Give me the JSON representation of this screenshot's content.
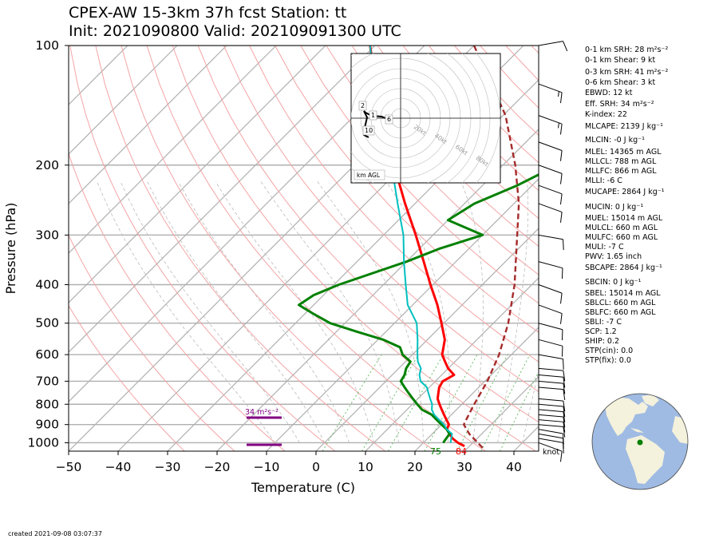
{
  "titles": {
    "line1": "CPEX-AW 15-3km  37h fcst  Station: tt",
    "line2": "Init: 2021090800  Valid: 202109091300 UTC"
  },
  "footer": "created 2021-09-08 03:07:37",
  "stats": [
    "0-1 km SRH: 28 m²s⁻²",
    "0-1 km Shear: 9 kt",
    "0-3 km SRH: 41 m²s⁻²",
    "0-6 km Shear: 3 kt",
    "EBWD: 12 kt",
    "Eff. SRH: 34 m²s⁻²",
    "K-index: 22",
    "MLCAPE: 2139 J kg⁻¹",
    "MLCIN: -0 J kg⁻¹",
    "MLEL: 14365 m AGL",
    "MLLCL: 788 m AGL",
    "MLLFC: 866 m AGL",
    "MLLI: -6 C",
    "MUCAPE: 2864 J kg⁻¹",
    "MUCIN: 0 J kg⁻¹",
    "MUEL: 15014 m AGL",
    "MULCL: 660 m AGL",
    "MULFC: 660 m AGL",
    "MULI: -7 C",
    "PWV: 1.65 inch",
    "SBCAPE: 2864 J kg⁻¹",
    "SBCIN: 0 J kg⁻¹",
    "SBEL: 15014 m AGL",
    "SBLCL: 660 m AGL",
    "SBLFC: 660 m AGL",
    "SBLI: -7 C",
    "SCP: 1.2",
    "SHIP: 0.2",
    "STP(cin): 0.0",
    "STP(fix): 0.0"
  ],
  "hodograph": {
    "ring_labels": [
      "20kt",
      "40kt",
      "60kt",
      "80kt"
    ],
    "height_labels": [
      "2",
      "1",
      "6",
      "10"
    ],
    "agl_label": "km AGL",
    "colors": {
      "trace": "#000000",
      "rings": "#bbbbbb"
    }
  },
  "surface_labels": {
    "dewpoint": "75",
    "temperature": "84"
  },
  "barb_unit_label": "knot",
  "eff_srh_label": "34 m²s⁻²",
  "colors": {
    "temperature": "#ff0000",
    "dewpoint": "#008000",
    "wetbulb": "#00bfbf",
    "parcel": "#a52a2a",
    "eff_layer": "#800080",
    "dry_adiabat": "#f4a4a4",
    "moist_adiabat": "#bbbbbb",
    "mixing_ratio": "#6abf6a",
    "globe_ocean": "#9fbbe3",
    "globe_land": "#f4f1dc",
    "station_dot": "#008000"
  },
  "chart_data": {
    "type": "line",
    "xlabel": "Temperature (C)",
    "ylabel": "Pressure (hPa)",
    "xlim": [
      -50,
      45
    ],
    "ylim": [
      1050,
      100
    ],
    "skew": true,
    "x_ticks": [
      "−50",
      "−40",
      "−30",
      "−20",
      "−10",
      "0",
      "10",
      "20",
      "30",
      "40"
    ],
    "y_ticks": [
      "100",
      "200",
      "300",
      "400",
      "500",
      "600",
      "700",
      "800",
      "900",
      "1000"
    ],
    "series": [
      {
        "name": "temperature",
        "pressure": [
          1020,
          1000,
          975,
          950,
          925,
          900,
          875,
          850,
          825,
          800,
          775,
          750,
          725,
          700,
          675,
          650,
          625,
          600,
          550,
          500,
          450,
          400,
          350,
          300,
          250,
          200,
          150,
          100
        ],
        "values": [
          29,
          27,
          25,
          23.5,
          22,
          21.5,
          20,
          18.5,
          17,
          15.5,
          14,
          13,
          12,
          11.5,
          12.5,
          10,
          8,
          6,
          3.5,
          -0.5,
          -5,
          -10.5,
          -16.5,
          -23.5,
          -32,
          -42,
          -55,
          -71
        ]
      },
      {
        "name": "dewpoint",
        "pressure": [
          1000,
          950,
          925,
          900,
          875,
          850,
          825,
          800,
          775,
          750,
          725,
          700,
          675,
          650,
          625,
          600,
          575,
          550,
          525,
          500,
          475,
          450,
          425,
          400,
          350,
          325,
          300,
          275,
          250,
          225,
          200,
          150,
          125,
          100
        ],
        "values": [
          24,
          23.5,
          22,
          20,
          18,
          16,
          13,
          11,
          9,
          7,
          5,
          3,
          2.5,
          1.5,
          1,
          -2,
          -4,
          -9,
          -16,
          -23,
          -28,
          -33,
          -32,
          -29,
          -20,
          -16,
          -10,
          -20,
          -18,
          -13,
          -9,
          -11,
          -7,
          5
        ]
      },
      {
        "name": "wetbulb",
        "pressure": [
          1000,
          950,
          925,
          900,
          875,
          850,
          825,
          800,
          775,
          750,
          725,
          700,
          675,
          650,
          625,
          600,
          550,
          500,
          450,
          400,
          350,
          300,
          250,
          200,
          150,
          100
        ],
        "values": [
          25.5,
          24,
          22,
          20.5,
          18.5,
          16.5,
          15,
          14,
          12.5,
          11,
          9.5,
          7,
          5.5,
          4.5,
          2.5,
          1,
          -2,
          -5.5,
          -11,
          -15.5,
          -20.5,
          -26,
          -33.5,
          -42.5,
          -55.5,
          -71
        ]
      },
      {
        "name": "parcel",
        "pressure": [
          1030,
          1000,
          950,
          900,
          850,
          800,
          700,
          600,
          500,
          400,
          300,
          250,
          200,
          150,
          100
        ],
        "values": [
          33,
          31,
          27.5,
          24.5,
          23.5,
          22.5,
          20.5,
          17.5,
          13,
          6.5,
          -3,
          -9,
          -17.5,
          -29.5,
          -50
        ]
      }
    ],
    "wind_barbs": [
      {
        "p": 1000,
        "speed_kt": 10,
        "dir_deg": 110
      },
      {
        "p": 975,
        "speed_kt": 10,
        "dir_deg": 100
      },
      {
        "p": 950,
        "speed_kt": 10,
        "dir_deg": 100
      },
      {
        "p": 925,
        "speed_kt": 10,
        "dir_deg": 100
      },
      {
        "p": 900,
        "speed_kt": 10,
        "dir_deg": 95
      },
      {
        "p": 875,
        "speed_kt": 10,
        "dir_deg": 95
      },
      {
        "p": 850,
        "speed_kt": 10,
        "dir_deg": 95
      },
      {
        "p": 825,
        "speed_kt": 10,
        "dir_deg": 95
      },
      {
        "p": 800,
        "speed_kt": 10,
        "dir_deg": 95
      },
      {
        "p": 775,
        "speed_kt": 10,
        "dir_deg": 95
      },
      {
        "p": 725,
        "speed_kt": 10,
        "dir_deg": 95
      },
      {
        "p": 700,
        "speed_kt": 10,
        "dir_deg": 95
      },
      {
        "p": 675,
        "speed_kt": 10,
        "dir_deg": 95
      },
      {
        "p": 650,
        "speed_kt": 10,
        "dir_deg": 95
      },
      {
        "p": 600,
        "speed_kt": 10,
        "dir_deg": 100
      },
      {
        "p": 550,
        "speed_kt": 10,
        "dir_deg": 105
      },
      {
        "p": 500,
        "speed_kt": 10,
        "dir_deg": 105
      },
      {
        "p": 450,
        "speed_kt": 10,
        "dir_deg": 110
      },
      {
        "p": 400,
        "speed_kt": 10,
        "dir_deg": 110
      },
      {
        "p": 350,
        "speed_kt": 10,
        "dir_deg": 105
      },
      {
        "p": 300,
        "speed_kt": 10,
        "dir_deg": 100
      },
      {
        "p": 250,
        "speed_kt": 10,
        "dir_deg": 110
      },
      {
        "p": 225,
        "speed_kt": 10,
        "dir_deg": 110
      },
      {
        "p": 200,
        "speed_kt": 10,
        "dir_deg": 110
      },
      {
        "p": 175,
        "speed_kt": 10,
        "dir_deg": 110
      },
      {
        "p": 150,
        "speed_kt": 15,
        "dir_deg": 110
      },
      {
        "p": 125,
        "speed_kt": 15,
        "dir_deg": 110
      },
      {
        "p": 100,
        "speed_kt": 10,
        "dir_deg": 80
      }
    ]
  }
}
